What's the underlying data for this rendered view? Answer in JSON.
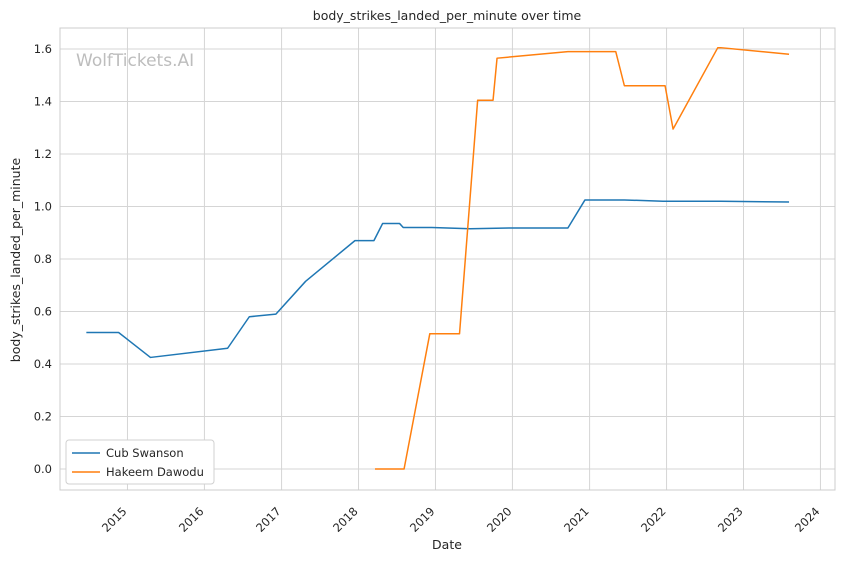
{
  "chart_data": {
    "type": "line",
    "title": "body_strikes_landed_per_minute over time",
    "xlabel": "Date",
    "ylabel": "body_strikes_landed_per_minute",
    "watermark": "WolfTickets.AI",
    "xlim": [
      "2014-02-15",
      "2024-03-10"
    ],
    "ylim": [
      -0.08,
      1.68
    ],
    "x_ticks": [
      "2015",
      "2016",
      "2017",
      "2018",
      "2019",
      "2020",
      "2021",
      "2022",
      "2023",
      "2024"
    ],
    "y_ticks": [
      0.0,
      0.2,
      0.4,
      0.6,
      0.8,
      1.0,
      1.2,
      1.4,
      1.6
    ],
    "grid": true,
    "legend_position": "lower-left",
    "series": [
      {
        "name": "Cub Swanson",
        "color": "#1f77b4",
        "points": [
          [
            "2014-06-20",
            0.52
          ],
          [
            "2014-11-20",
            0.52
          ],
          [
            "2015-04-20",
            0.425
          ],
          [
            "2016-04-20",
            0.46
          ],
          [
            "2016-08-01",
            0.58
          ],
          [
            "2016-12-05",
            0.59
          ],
          [
            "2017-04-25",
            0.715
          ],
          [
            "2017-12-15",
            0.87
          ],
          [
            "2018-03-15",
            0.87
          ],
          [
            "2018-04-25",
            0.935
          ],
          [
            "2018-07-15",
            0.935
          ],
          [
            "2018-08-01",
            0.92
          ],
          [
            "2018-12-15",
            0.92
          ],
          [
            "2019-06-15",
            0.915
          ],
          [
            "2019-12-15",
            0.918
          ],
          [
            "2020-09-20",
            0.918
          ],
          [
            "2020-12-10",
            1.025
          ],
          [
            "2021-06-15",
            1.025
          ],
          [
            "2021-12-15",
            1.02
          ],
          [
            "2022-09-15",
            1.02
          ],
          [
            "2023-08-05",
            1.017
          ]
        ]
      },
      {
        "name": "Hakeem Dawodu",
        "color": "#ff7f0e",
        "points": [
          [
            "2018-03-20",
            0.0
          ],
          [
            "2018-08-05",
            0.0
          ],
          [
            "2018-12-05",
            0.515
          ],
          [
            "2019-04-25",
            0.515
          ],
          [
            "2019-07-20",
            1.405
          ],
          [
            "2019-10-01",
            1.405
          ],
          [
            "2019-10-20",
            1.565
          ],
          [
            "2020-09-20",
            1.59
          ],
          [
            "2021-05-05",
            1.59
          ],
          [
            "2021-06-15",
            1.46
          ],
          [
            "2021-12-25",
            1.46
          ],
          [
            "2022-02-01",
            1.295
          ],
          [
            "2022-09-01",
            1.605
          ],
          [
            "2022-09-15",
            1.605
          ],
          [
            "2023-08-05",
            1.58
          ]
        ]
      }
    ]
  }
}
